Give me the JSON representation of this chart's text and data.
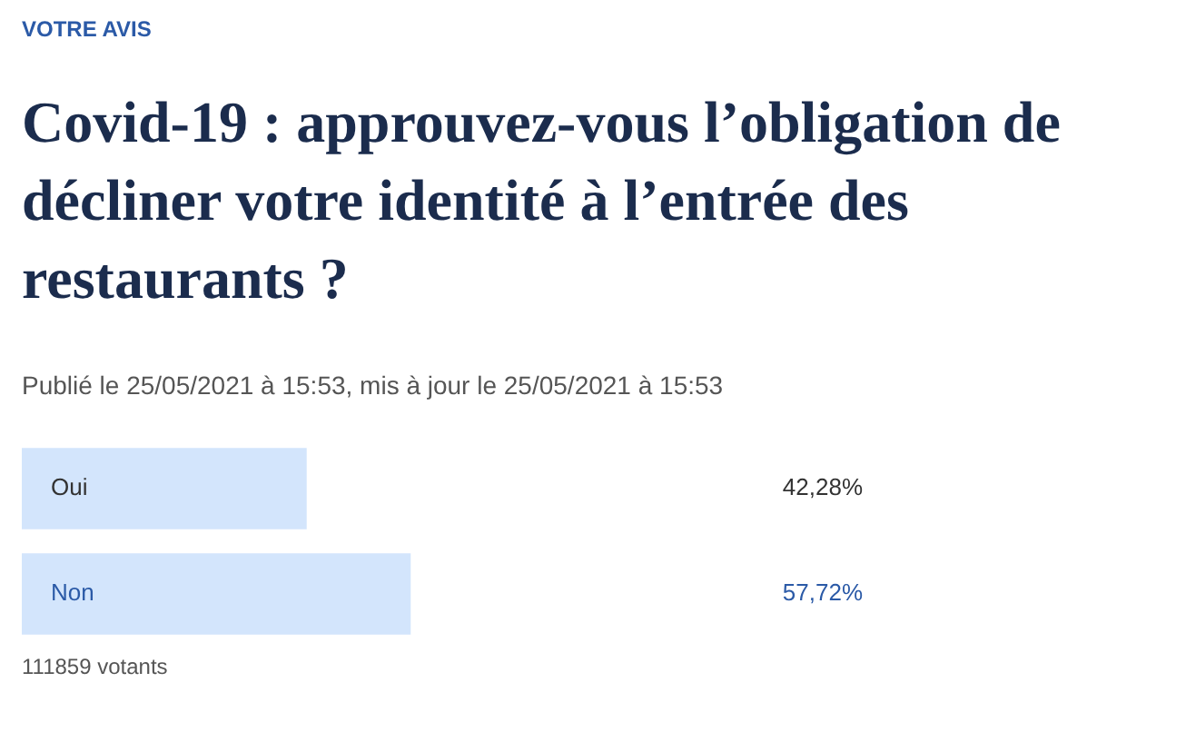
{
  "chart_data": {
    "type": "bar",
    "orientation": "horizontal",
    "title": "Covid-19 : approuvez-vous l’obligation de décliner votre identité à l’entrée des restaurants ?",
    "subtitle": "Publié le 25/05/2021 à 15:53, mis à jour le 25/05/2021 à 15:53",
    "annotations": [
      "VOTRE AVIS",
      "111859 votants"
    ],
    "categories": [
      "Oui",
      "Non"
    ],
    "values": [
      42.28,
      57.72
    ],
    "value_labels": [
      "42,28%",
      "57,72%"
    ],
    "colors": [
      "#d3e5fc",
      "#d3e5fc"
    ],
    "legend": false
  }
}
